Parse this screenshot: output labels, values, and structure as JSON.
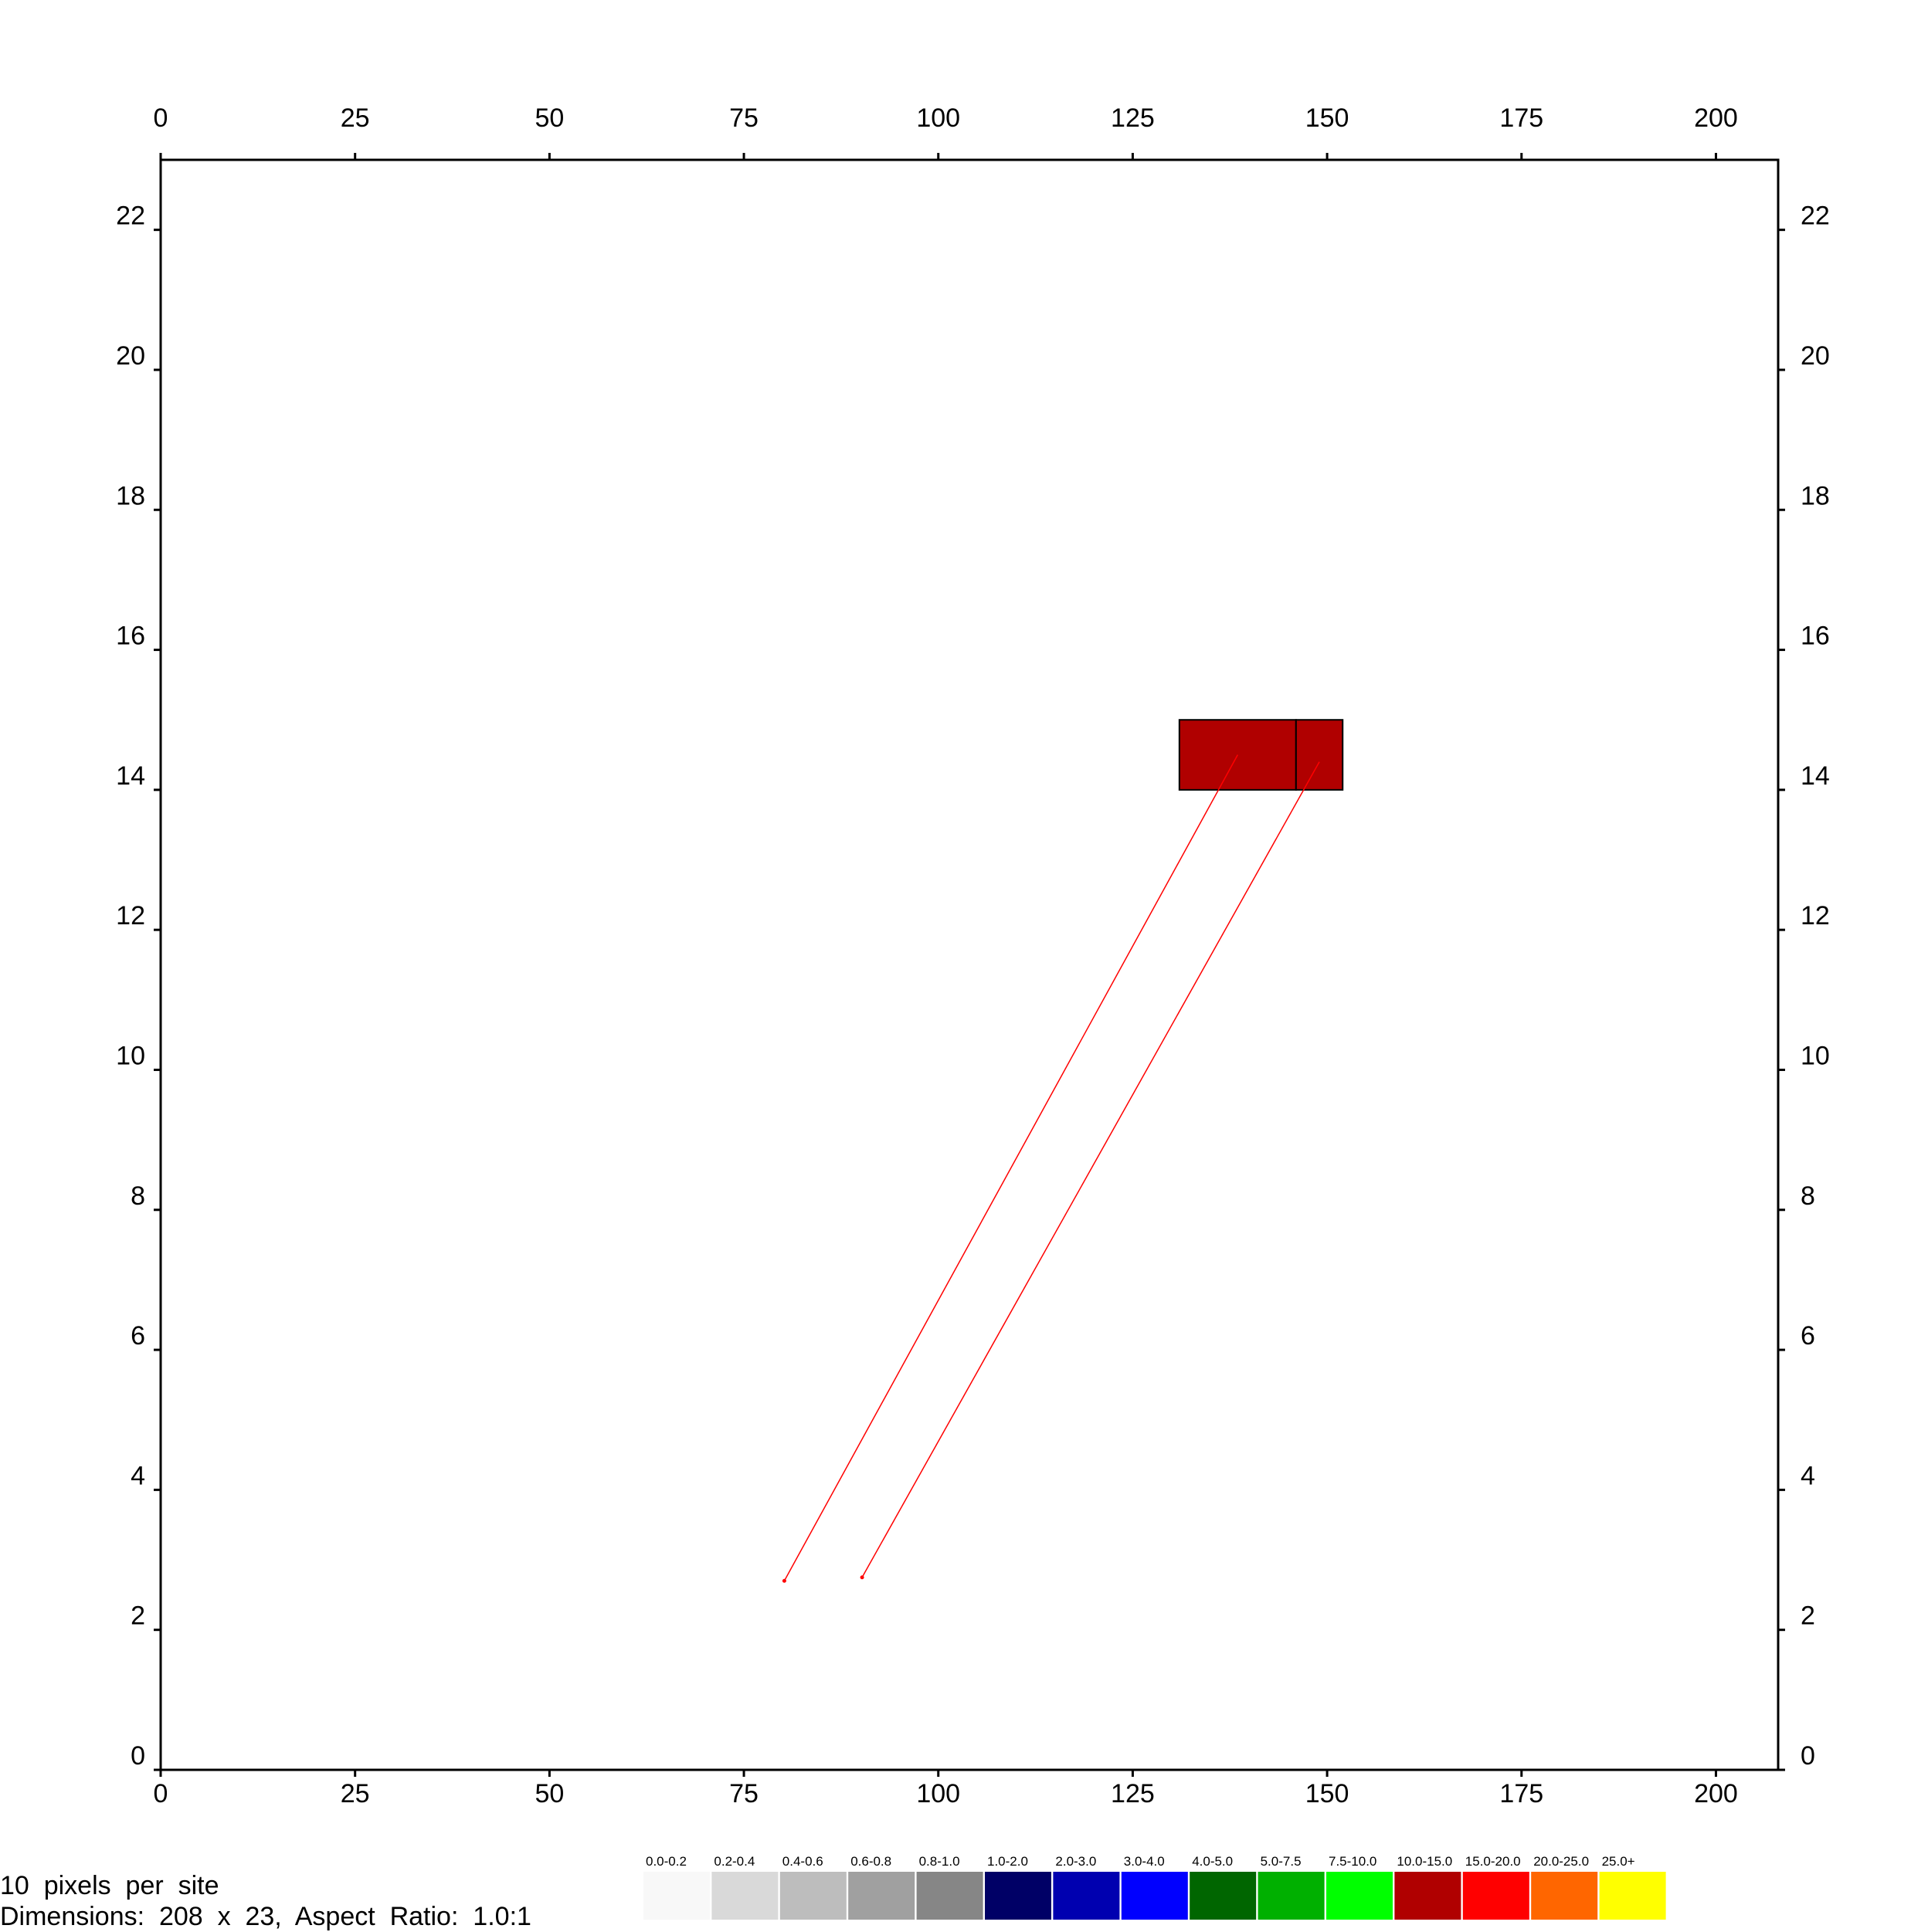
{
  "chart_data": {
    "type": "heatmap",
    "title": "",
    "xlabel": "",
    "ylabel": "",
    "xlim": [
      0,
      208
    ],
    "ylim": [
      0,
      23
    ],
    "x_ticks": [
      0,
      25,
      50,
      75,
      100,
      125,
      150,
      175,
      200
    ],
    "y_ticks": [
      0,
      2,
      4,
      6,
      8,
      10,
      12,
      14,
      16,
      18,
      20,
      22
    ],
    "grid": false,
    "cells": [
      {
        "x0": 131,
        "x1": 146,
        "y0": 14,
        "y1": 15,
        "value_range": "10.0-15.0",
        "color": "#b00000"
      },
      {
        "x0": 146,
        "x1": 152,
        "y0": 14,
        "y1": 15,
        "value_range": "10.0-15.0",
        "color": "#b00000"
      }
    ],
    "traces": [
      {
        "from": [
          80.2,
          2.7
        ],
        "to": [
          138.5,
          14.5
        ],
        "color": "#ff0000"
      },
      {
        "from": [
          90.2,
          2.75
        ],
        "to": [
          149.0,
          14.4
        ],
        "color": "#ff0000"
      }
    ],
    "legend": {
      "placement": "bottom",
      "entries": [
        {
          "label": "0.0-0.2",
          "color": "#f8f8f8"
        },
        {
          "label": "0.2-0.4",
          "color": "#d9d9d9"
        },
        {
          "label": "0.4-0.6",
          "color": "#bdbdbd"
        },
        {
          "label": "0.6-0.8",
          "color": "#a0a0a0"
        },
        {
          "label": "0.8-1.0",
          "color": "#868686"
        },
        {
          "label": "1.0-2.0",
          "color": "#000066"
        },
        {
          "label": "2.0-3.0",
          "color": "#0000b0"
        },
        {
          "label": "3.0-4.0",
          "color": "#0000ff"
        },
        {
          "label": "4.0-5.0",
          "color": "#006600"
        },
        {
          "label": "5.0-7.5",
          "color": "#00b000"
        },
        {
          "label": "7.5-10.0",
          "color": "#00ff00"
        },
        {
          "label": "10.0-15.0",
          "color": "#b00000"
        },
        {
          "label": "15.0-20.0",
          "color": "#ff0000"
        },
        {
          "label": "20.0-25.0",
          "color": "#ff6600"
        },
        {
          "label": "25.0+",
          "color": "#ffff00"
        }
      ]
    }
  },
  "info": {
    "resolution": "10  pixels  per  site",
    "dimensions": "Dimensions:  208  x  23,  Aspect  Ratio:  1.0:1"
  }
}
